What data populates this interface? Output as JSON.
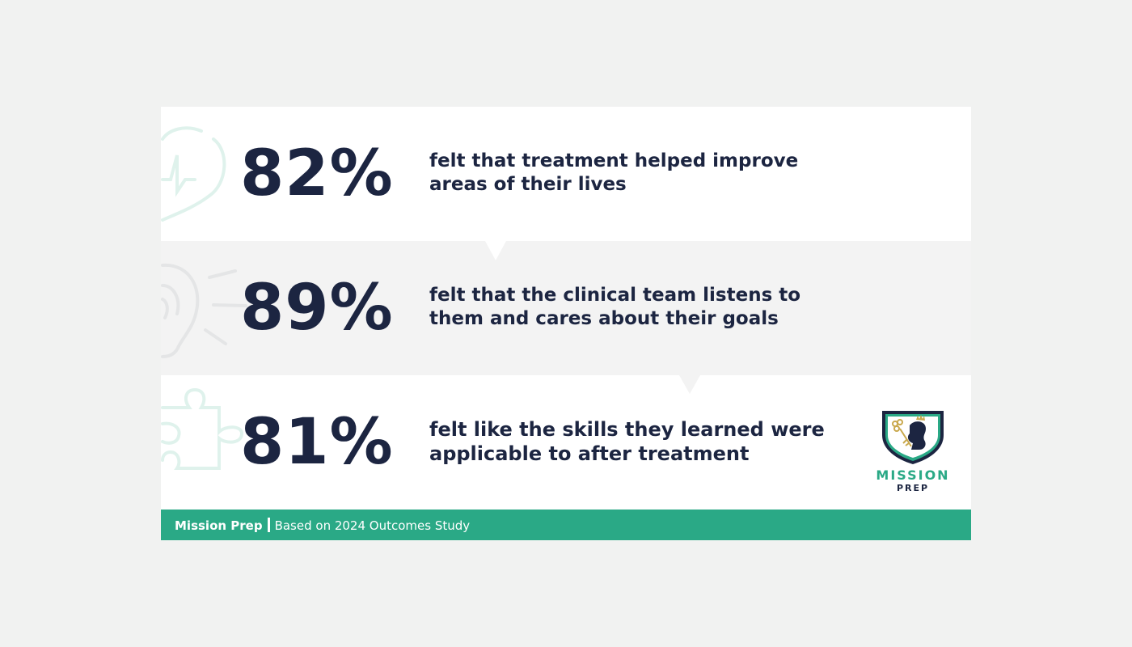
{
  "stats": [
    {
      "value": "82%",
      "text": "felt that treatment helped improve areas of their lives",
      "line1": "felt that treatment helped improve",
      "line2": "areas of their lives",
      "icon": "heart-pulse-icon"
    },
    {
      "value": "89%",
      "text": "felt that the clinical team listens to them and cares about their goals",
      "line1": "felt that the clinical team listens to",
      "line2": "them and cares about their goals",
      "icon": "ear-icon"
    },
    {
      "value": "81%",
      "text": "felt like the skills they learned were applicable to after treatment",
      "line1": "felt like the skills they learned were",
      "line2": "applicable to after treatment",
      "icon": "puzzle-icon"
    }
  ],
  "logo": {
    "line1": "MISSION",
    "line2": "PREP"
  },
  "footer": {
    "brand": "Mission Prep",
    "source": "Based on 2024 Outcomes Study"
  },
  "colors": {
    "navy": "#1c2541",
    "green": "#2aa986",
    "row_alt": "#f3f3f3",
    "background": "#f1f2f1"
  }
}
